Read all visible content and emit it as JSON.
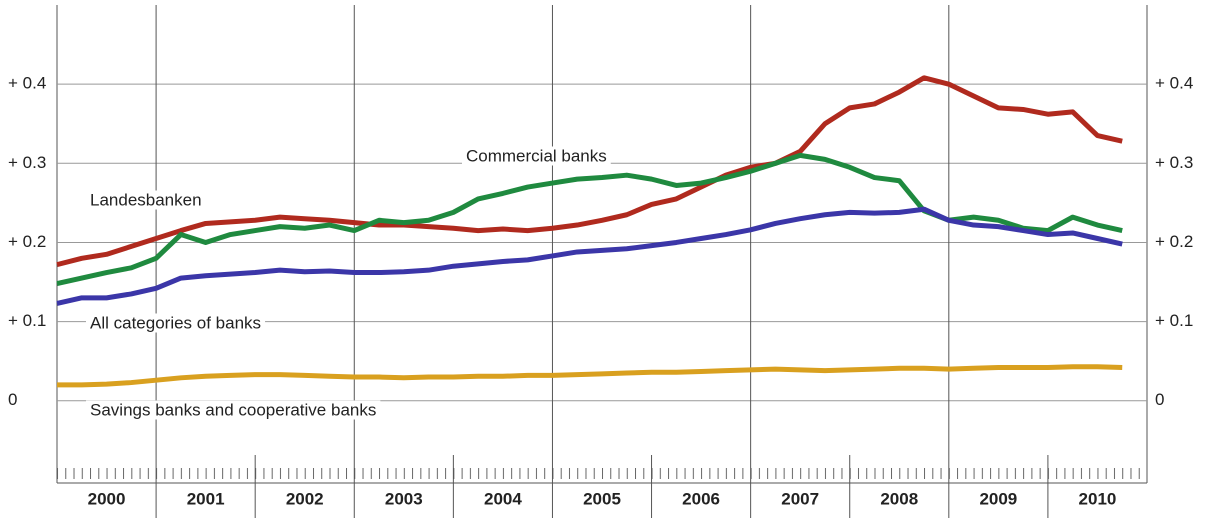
{
  "chart_data": {
    "type": "line",
    "x": [
      2000,
      2000.25,
      2000.5,
      2000.75,
      2001,
      2001.25,
      2001.5,
      2001.75,
      2002,
      2002.25,
      2002.5,
      2002.75,
      2003,
      2003.25,
      2003.5,
      2003.75,
      2004,
      2004.25,
      2004.5,
      2004.75,
      2005,
      2005.25,
      2005.5,
      2005.75,
      2006,
      2006.25,
      2006.5,
      2006.75,
      2007,
      2007.25,
      2007.5,
      2007.75,
      2008,
      2008.25,
      2008.5,
      2008.75,
      2009,
      2009.25,
      2009.5,
      2009.75,
      2010,
      2010.25,
      2010.5,
      2010.75
    ],
    "series": [
      {
        "name": "Landesbanken",
        "color": "#b02a1e",
        "values": [
          0.172,
          0.18,
          0.185,
          0.195,
          0.205,
          0.215,
          0.224,
          0.226,
          0.228,
          0.232,
          0.23,
          0.228,
          0.225,
          0.222,
          0.222,
          0.22,
          0.218,
          0.215,
          0.217,
          0.215,
          0.218,
          0.222,
          0.228,
          0.235,
          0.248,
          0.255,
          0.27,
          0.285,
          0.295,
          0.3,
          0.315,
          0.35,
          0.37,
          0.375,
          0.39,
          0.408,
          0.4,
          0.385,
          0.37,
          0.368,
          0.362,
          0.365,
          0.335,
          0.328
        ]
      },
      {
        "name": "Commercial banks",
        "color": "#1f8a3f",
        "values": [
          0.148,
          0.155,
          0.162,
          0.168,
          0.18,
          0.21,
          0.2,
          0.21,
          0.215,
          0.22,
          0.218,
          0.222,
          0.215,
          0.228,
          0.225,
          0.228,
          0.238,
          0.255,
          0.262,
          0.27,
          0.275,
          0.28,
          0.282,
          0.285,
          0.28,
          0.272,
          0.275,
          0.282,
          0.29,
          0.3,
          0.31,
          0.305,
          0.295,
          0.282,
          0.278,
          0.24,
          0.228,
          0.232,
          0.228,
          0.218,
          0.215,
          0.232,
          0.222,
          0.215
        ]
      },
      {
        "name": "All categories of banks",
        "color": "#3b36a8",
        "values": [
          0.123,
          0.13,
          0.13,
          0.135,
          0.142,
          0.155,
          0.158,
          0.16,
          0.162,
          0.165,
          0.163,
          0.164,
          0.162,
          0.162,
          0.163,
          0.165,
          0.17,
          0.173,
          0.176,
          0.178,
          0.183,
          0.188,
          0.19,
          0.192,
          0.196,
          0.2,
          0.205,
          0.21,
          0.216,
          0.224,
          0.23,
          0.235,
          0.238,
          0.237,
          0.238,
          0.242,
          0.228,
          0.222,
          0.22,
          0.215,
          0.21,
          0.212,
          0.205,
          0.198
        ]
      },
      {
        "name": "Savings banks and cooperative banks",
        "color": "#d9a01f",
        "values": [
          0.02,
          0.02,
          0.021,
          0.023,
          0.026,
          0.029,
          0.031,
          0.032,
          0.033,
          0.033,
          0.032,
          0.031,
          0.03,
          0.03,
          0.029,
          0.03,
          0.03,
          0.031,
          0.031,
          0.032,
          0.032,
          0.033,
          0.034,
          0.035,
          0.036,
          0.036,
          0.037,
          0.038,
          0.039,
          0.04,
          0.039,
          0.038,
          0.039,
          0.04,
          0.041,
          0.041,
          0.04,
          0.041,
          0.042,
          0.042,
          0.042,
          0.043,
          0.043,
          0.042
        ]
      }
    ],
    "xlim": [
      2000,
      2011
    ],
    "xticks": [
      {
        "value": 2000,
        "label": "2000"
      },
      {
        "value": 2001,
        "label": "2001"
      },
      {
        "value": 2002,
        "label": "2002"
      },
      {
        "value": 2003,
        "label": "2003"
      },
      {
        "value": 2004,
        "label": "2004"
      },
      {
        "value": 2005,
        "label": "2005"
      },
      {
        "value": 2006,
        "label": "2006"
      },
      {
        "value": 2007,
        "label": "2007"
      },
      {
        "value": 2008,
        "label": "2008"
      },
      {
        "value": 2009,
        "label": "2009"
      },
      {
        "value": 2010,
        "label": "2010"
      }
    ],
    "ylim": [
      -0.09,
      0.5
    ],
    "yticks": [
      {
        "value": 0,
        "label": "0"
      },
      {
        "value": 0.1,
        "label": "+ 0.1"
      },
      {
        "value": 0.2,
        "label": "+ 0.2"
      },
      {
        "value": 0.3,
        "label": "+ 0.3"
      },
      {
        "value": 0.4,
        "label": "+ 0.4"
      }
    ],
    "grid": true
  }
}
